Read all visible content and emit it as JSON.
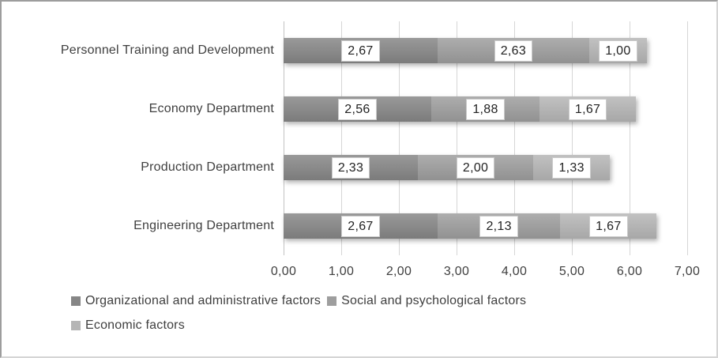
{
  "chart_data": {
    "type": "bar",
    "orientation": "horizontal",
    "stacked": true,
    "title": "",
    "xlabel": "",
    "ylabel": "",
    "xlim": [
      0,
      7
    ],
    "x_tick_step": 1,
    "x_ticks": [
      "0,00",
      "1,00",
      "2,00",
      "3,00",
      "4,00",
      "5,00",
      "6,00",
      "7,00"
    ],
    "gridlines": "vertical",
    "legend_position": "bottom-left",
    "decimal_separator": ",",
    "categories": [
      "Personnel Training and Development",
      "Economy Department",
      "Production Department",
      "Engineering Department"
    ],
    "series": [
      {
        "name": "Organizational and administrative factors",
        "legend_color": "#868686",
        "values": [
          2.67,
          2.56,
          2.33,
          2.67
        ],
        "labels": [
          "2,67",
          "2,56",
          "2,33",
          "2,67"
        ]
      },
      {
        "name": "Social and psychological factors",
        "legend_color": "#9e9e9e",
        "values": [
          2.63,
          1.88,
          2.0,
          2.13
        ],
        "labels": [
          "2,63",
          "1,88",
          "2,00",
          "2,13"
        ]
      },
      {
        "name": "Economic factors",
        "legend_color": "#b5b5b5",
        "values": [
          1.0,
          1.67,
          1.33,
          1.67
        ],
        "labels": [
          "1,00",
          "1,67",
          "1,33",
          "1,67"
        ]
      }
    ],
    "colors": {
      "gridline": "#d6d6d6",
      "axis_line": "#c2c2c2",
      "text": "#3f3f3f",
      "data_label_text": "#222222",
      "data_label_border": "#cbcbcb",
      "data_label_fill": "#ffffff"
    }
  }
}
